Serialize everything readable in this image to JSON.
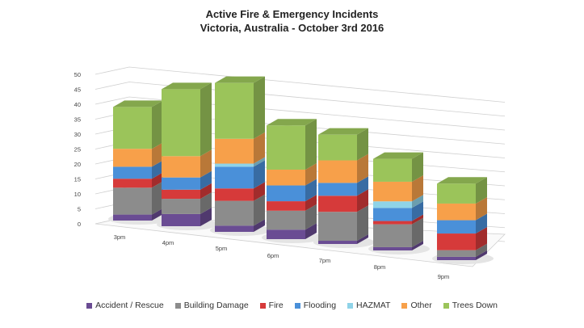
{
  "chart_data": {
    "type": "bar",
    "stacked": true,
    "three_d": true,
    "title": "Active Fire & Emergency Incidents",
    "subtitle": "Victoria, Australia - October 3rd 2016",
    "xlabel": "",
    "ylabel": "",
    "ylim": [
      0,
      50
    ],
    "yticks": [
      0,
      5,
      10,
      15,
      20,
      25,
      30,
      35,
      40,
      45,
      50
    ],
    "categories": [
      "3pm",
      "4pm",
      "5pm",
      "6pm",
      "7pm",
      "8pm",
      "9pm"
    ],
    "legend_position": "bottom",
    "grid": true,
    "series": [
      {
        "name": "Accident / Rescue",
        "color": "#6a4c93",
        "values": [
          2,
          4,
          2,
          3,
          1,
          1,
          1
        ]
      },
      {
        "name": "Building Damage",
        "color": "#8c8c8c",
        "values": [
          9,
          5,
          8,
          6,
          9,
          7,
          2
        ]
      },
      {
        "name": "Fire",
        "color": "#d63a3a",
        "values": [
          3,
          3,
          4,
          3,
          5,
          1,
          5
        ]
      },
      {
        "name": "Flooding",
        "color": "#4a90d9",
        "values": [
          4,
          4,
          7,
          5,
          4,
          4,
          4
        ]
      },
      {
        "name": "HAZMAT",
        "color": "#8fd3e8",
        "values": [
          0,
          0,
          1,
          0,
          0,
          2,
          0
        ]
      },
      {
        "name": "Other",
        "color": "#f7a04a",
        "values": [
          6,
          7,
          8,
          5,
          7,
          6,
          5
        ]
      },
      {
        "name": "Trees Down",
        "color": "#9bc45a",
        "values": [
          14,
          22,
          18,
          14,
          8,
          7,
          6
        ]
      }
    ]
  }
}
